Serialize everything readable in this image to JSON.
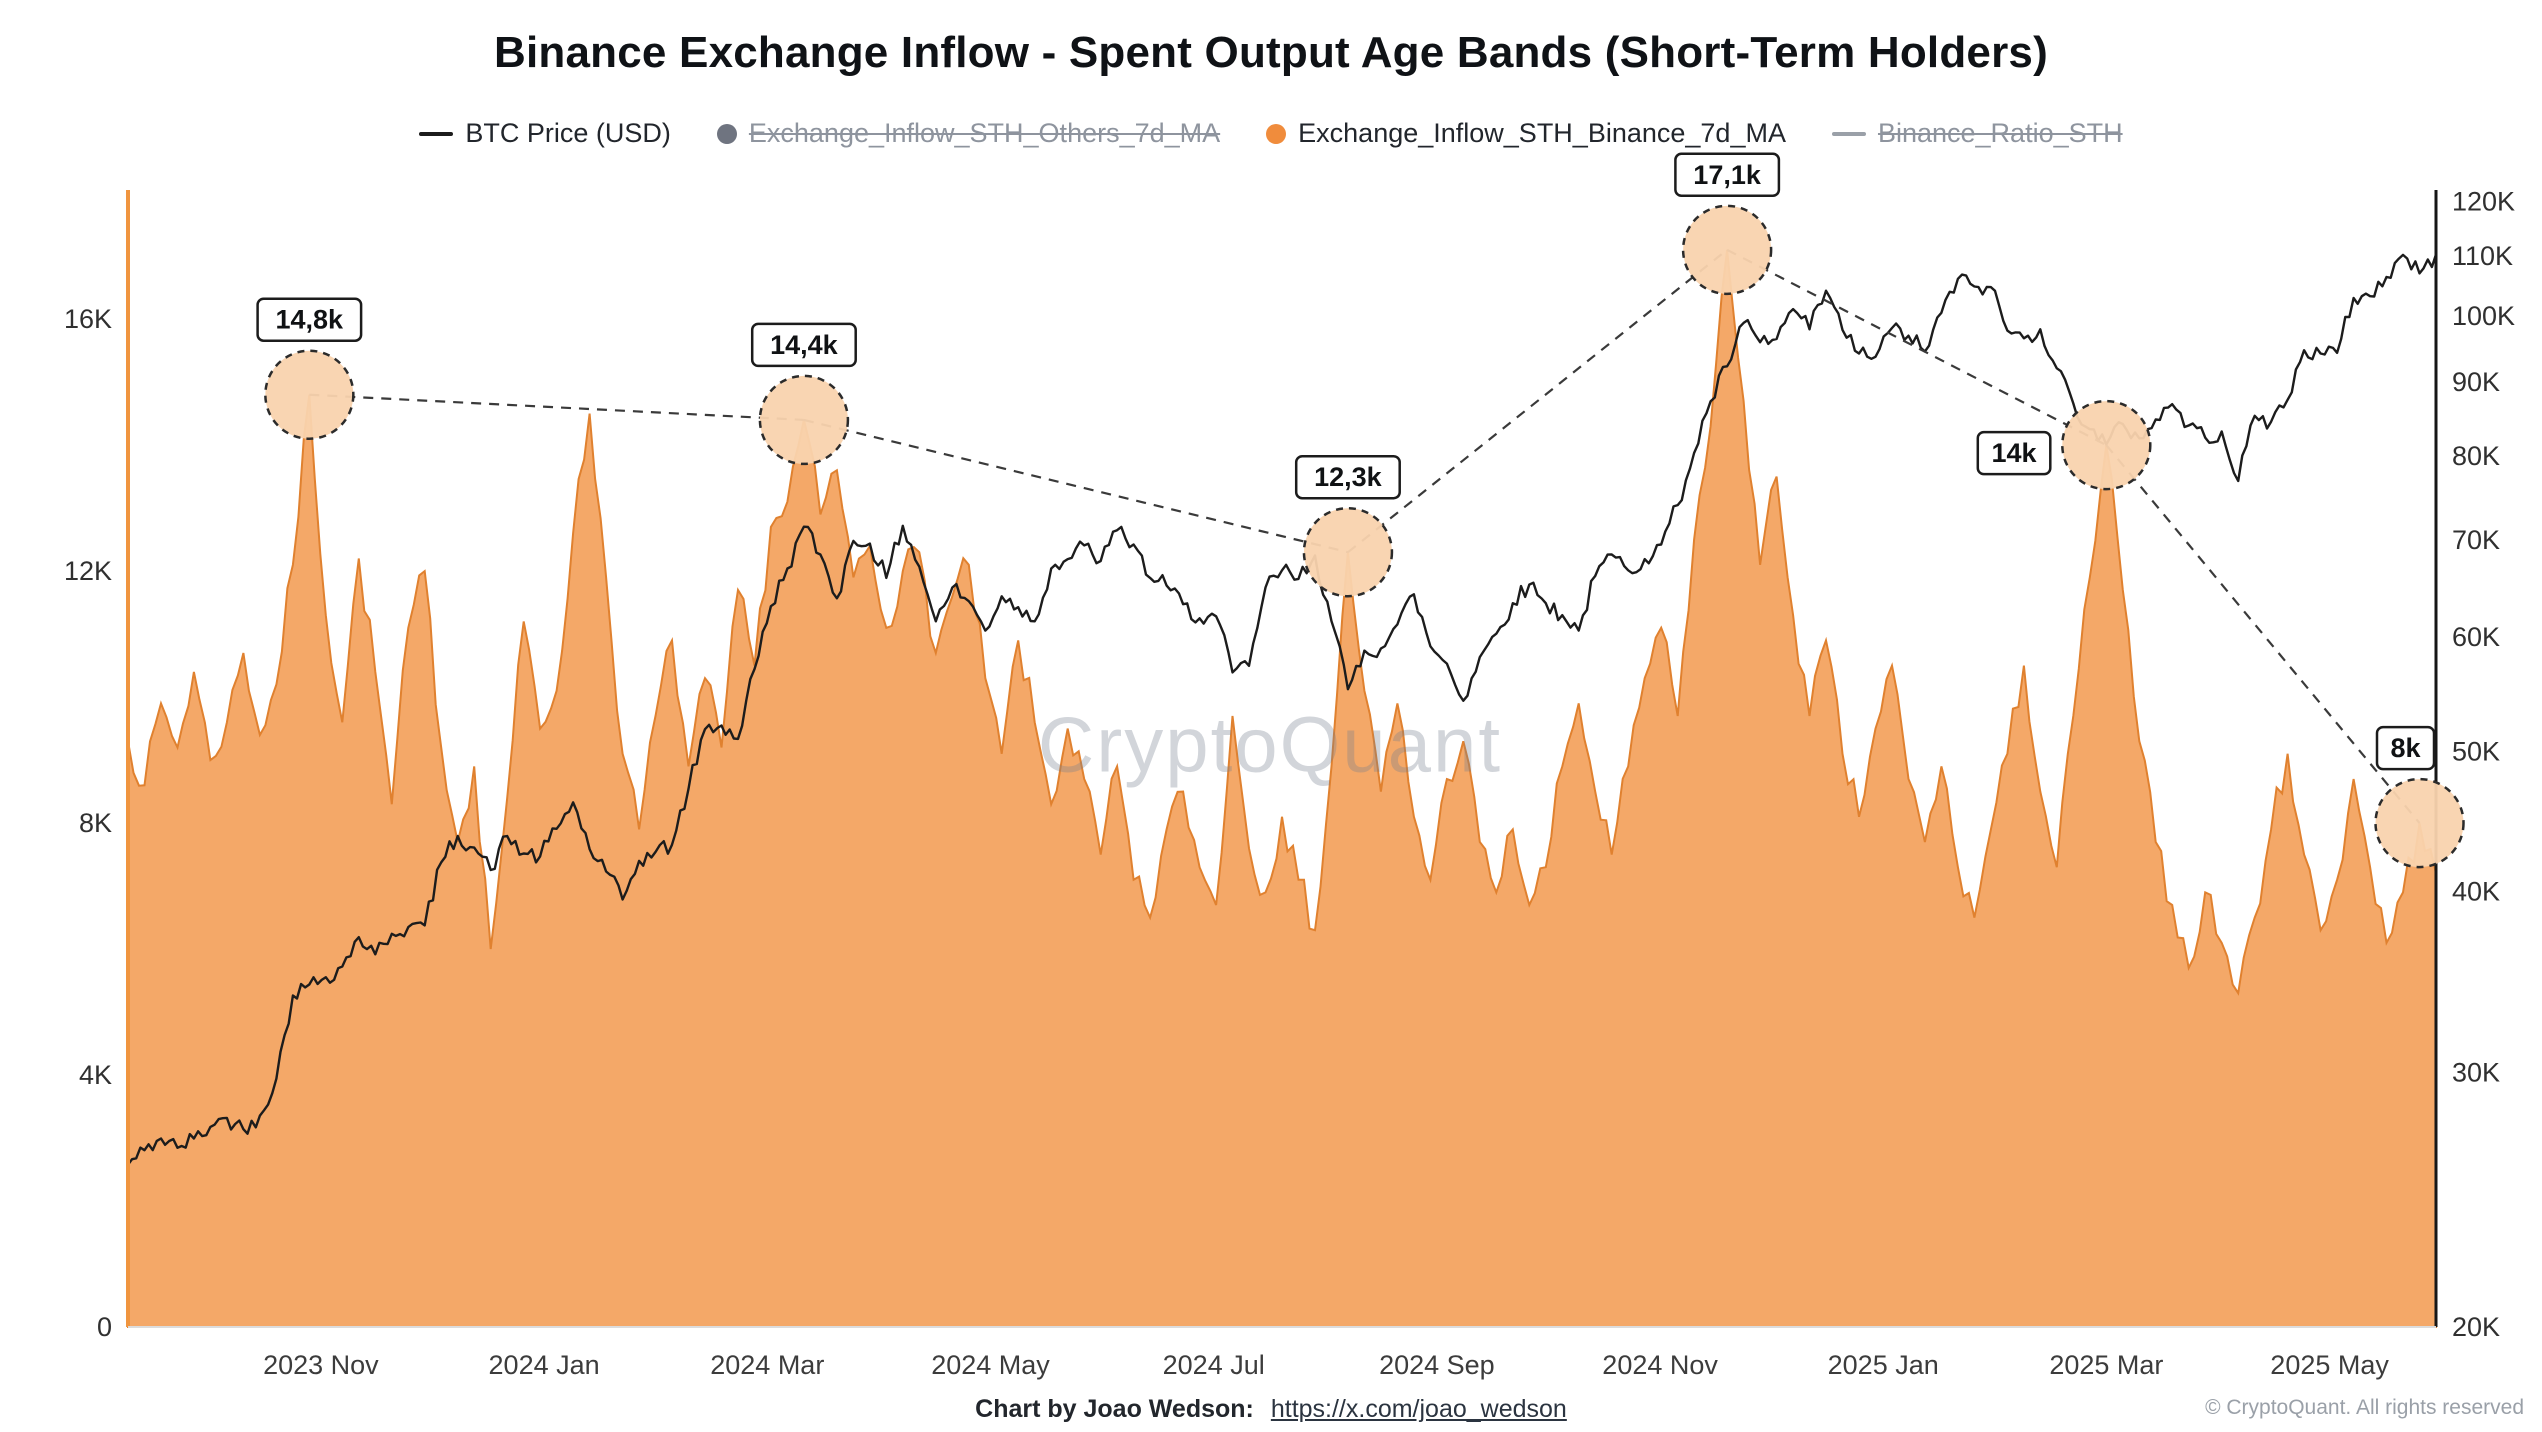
{
  "page": {
    "title": "Binance Exchange Inflow - Spent Output Age Bands (Short-Term Holders)",
    "watermark": "CryptoQuant",
    "footer": {
      "credit_label": "Chart by Joao Wedson:",
      "credit_link": "https://x.com/joao_wedson",
      "copyright": "© CryptoQuant. All rights reserved"
    }
  },
  "legend": [
    {
      "id": "btc-price",
      "label": "BTC Price (USD)",
      "swatch": "line",
      "color": "#1c1c1c",
      "active": true
    },
    {
      "id": "inflow-sth-others",
      "label": "Exchange_Inflow_STH_Others_7d_MA",
      "swatch": "dot",
      "color": "#6f7480",
      "active": false
    },
    {
      "id": "inflow-sth-binance",
      "label": "Exchange_Inflow_STH_Binance_7d_MA",
      "swatch": "dot",
      "color": "#f08c3c",
      "active": true
    },
    {
      "id": "binance-ratio-sth",
      "label": "Binance_Ratio_STH",
      "swatch": "line",
      "color": "#9aa0a8",
      "active": false
    }
  ],
  "chart_data": {
    "type": "area+line",
    "title": "Binance Exchange Inflow - Spent Output Age Bands (Short-Term Holders)",
    "grid": "off",
    "colors": {
      "area_fill": "#f3a360",
      "area_stroke": "#e0812f",
      "price_line": "#1c1c1c",
      "left_axis_line": "#f0953f",
      "right_axis_line": "#161616",
      "bottom_axis_line": "#dcdcdc",
      "annotation_circle_fill": "#f9d3ae",
      "annotation_stroke": "#2b2b2b"
    },
    "x_ticks": [
      {
        "label": "2023 Nov",
        "f": 0.0836
      },
      {
        "label": "2024 Jan",
        "f": 0.1803
      },
      {
        "label": "2024 Mar",
        "f": 0.277
      },
      {
        "label": "2024 May",
        "f": 0.3737
      },
      {
        "label": "2024 Jul",
        "f": 0.4704
      },
      {
        "label": "2024 Sep",
        "f": 0.5671
      },
      {
        "label": "2024 Nov",
        "f": 0.6638
      },
      {
        "label": "2025 Jan",
        "f": 0.7605
      },
      {
        "label": "2025 Mar",
        "f": 0.8572
      },
      {
        "label": "2025 May",
        "f": 0.9539
      }
    ],
    "left_axis": {
      "unit": "K",
      "max": 18.05,
      "ticks": [
        {
          "label": "0",
          "value": 0
        },
        {
          "label": "4K",
          "value": 4
        },
        {
          "label": "8K",
          "value": 8
        },
        {
          "label": "12K",
          "value": 12
        },
        {
          "label": "16K",
          "value": 16
        }
      ]
    },
    "right_axis": {
      "scale": "log",
      "min": 20,
      "max": 122.2,
      "unit": "K USD",
      "ticks": [
        {
          "label": "20K",
          "value": 20
        },
        {
          "label": "30K",
          "value": 30
        },
        {
          "label": "40K",
          "value": 40
        },
        {
          "label": "50K",
          "value": 50
        },
        {
          "label": "60K",
          "value": 60
        },
        {
          "label": "70K",
          "value": 70
        },
        {
          "label": "80K",
          "value": 80
        },
        {
          "label": "90K",
          "value": 90
        },
        {
          "label": "100K",
          "value": 100
        },
        {
          "label": "110K",
          "value": 110
        },
        {
          "label": "120K",
          "value": 120
        }
      ]
    },
    "series": [
      {
        "name": "Exchange_Inflow_STH_Binance_7d_MA",
        "type": "area",
        "axis": "left",
        "unit": "K BTC",
        "values": [
          9.3,
          8.6,
          9.9,
          9.2,
          10.4,
          9.0,
          9.6,
          10.7,
          9.4,
          10.2,
          12.1,
          14.8,
          11.3,
          9.6,
          12.2,
          10.4,
          8.3,
          11.1,
          12.0,
          9.2,
          7.7,
          8.9,
          6.0,
          8.4,
          11.2,
          9.5,
          10.1,
          12.6,
          14.5,
          11.9,
          9.1,
          7.9,
          9.7,
          10.9,
          8.9,
          10.3,
          9.2,
          11.7,
          10.5,
          12.7,
          13.1,
          14.4,
          12.9,
          13.6,
          11.9,
          12.4,
          11.1,
          12.0,
          12.3,
          10.7,
          11.6,
          12.1,
          10.3,
          9.1,
          10.9,
          9.6,
          8.3,
          9.5,
          8.7,
          7.5,
          8.9,
          7.1,
          6.5,
          7.9,
          8.5,
          7.3,
          6.7,
          9.7,
          7.6,
          6.9,
          8.1,
          7.1,
          6.3,
          8.9,
          12.3,
          10.1,
          8.5,
          9.9,
          8.1,
          7.1,
          8.7,
          9.3,
          7.7,
          6.9,
          7.9,
          6.7,
          7.3,
          8.9,
          9.9,
          8.5,
          7.5,
          8.9,
          10.3,
          11.1,
          9.7,
          12.5,
          14.3,
          17.1,
          14.7,
          12.1,
          13.5,
          11.3,
          9.7,
          10.9,
          9.1,
          8.1,
          9.5,
          10.5,
          8.7,
          7.7,
          8.9,
          7.3,
          6.5,
          7.9,
          9.1,
          10.5,
          8.5,
          7.3,
          9.7,
          11.9,
          14.0,
          11.7,
          9.3,
          7.7,
          6.7,
          5.7,
          6.9,
          6.1,
          5.3,
          6.5,
          7.9,
          9.1,
          7.5,
          6.3,
          7.1,
          8.7,
          7.3,
          6.1,
          6.9,
          8.0,
          7.2
        ]
      },
      {
        "name": "BTC Price (USD)",
        "type": "line",
        "axis": "right",
        "unit": "K USD",
        "values": [
          25.9,
          26.5,
          27.0,
          26.6,
          27.0,
          27.5,
          27.9,
          27.4,
          28.0,
          29.7,
          33.9,
          34.5,
          34.9,
          35.5,
          37.2,
          36.2,
          37.4,
          37.8,
          37.9,
          41.9,
          43.7,
          42.9,
          41.4,
          43.7,
          42.5,
          42.3,
          44.2,
          46.1,
          42.8,
          41.3,
          39.5,
          42.0,
          42.6,
          43.1,
          47.1,
          51.8,
          52.1,
          51.0,
          57.0,
          63.0,
          66.9,
          71.5,
          68.4,
          63.8,
          69.9,
          69.6,
          65.9,
          71.6,
          67.1,
          61.5,
          64.9,
          63.5,
          60.6,
          64.0,
          62.9,
          61.5,
          66.9,
          67.9,
          69.4,
          67.7,
          71.1,
          69.5,
          65.9,
          65.1,
          63.2,
          61.8,
          62.0,
          56.7,
          57.3,
          64.9,
          66.7,
          65.8,
          68.3,
          61.5,
          55.2,
          58.7,
          58.9,
          61.2,
          64.2,
          59.1,
          57.5,
          54.2,
          58.1,
          60.3,
          63.3,
          65.2,
          63.3,
          62.1,
          60.6,
          66.1,
          68.4,
          66.7,
          67.9,
          69.5,
          74.0,
          80.4,
          87.3,
          92.3,
          98.9,
          95.9,
          96.4,
          101.1,
          97.9,
          104.1,
          97.8,
          94.2,
          93.7,
          98.1,
          96.9,
          94.5,
          100.5,
          106.1,
          104.8,
          104.7,
          97.7,
          96.5,
          97.9,
          92.0,
          87.0,
          83.5,
          81.5,
          84.2,
          82.3,
          84.8,
          86.9,
          84.0,
          82.4,
          83.2,
          76.9,
          85.3,
          84.5,
          87.5,
          94.7,
          94.2,
          94.3,
          102.9,
          103.2,
          106.4,
          110.2,
          107.0,
          110.3
        ]
      }
    ],
    "annotations": [
      {
        "label": "14,8k",
        "index": 11,
        "value": 14.8
      },
      {
        "label": "14,4k",
        "index": 41,
        "value": 14.4
      },
      {
        "label": "12,3k",
        "index": 74,
        "value": 12.3
      },
      {
        "label": "17,1k",
        "index": 97,
        "value": 17.1
      },
      {
        "label": "14k",
        "index": 120,
        "value": 14.0,
        "placement": "left"
      },
      {
        "label": "8k",
        "index": 139,
        "value": 8.0,
        "dx": -14
      }
    ]
  }
}
